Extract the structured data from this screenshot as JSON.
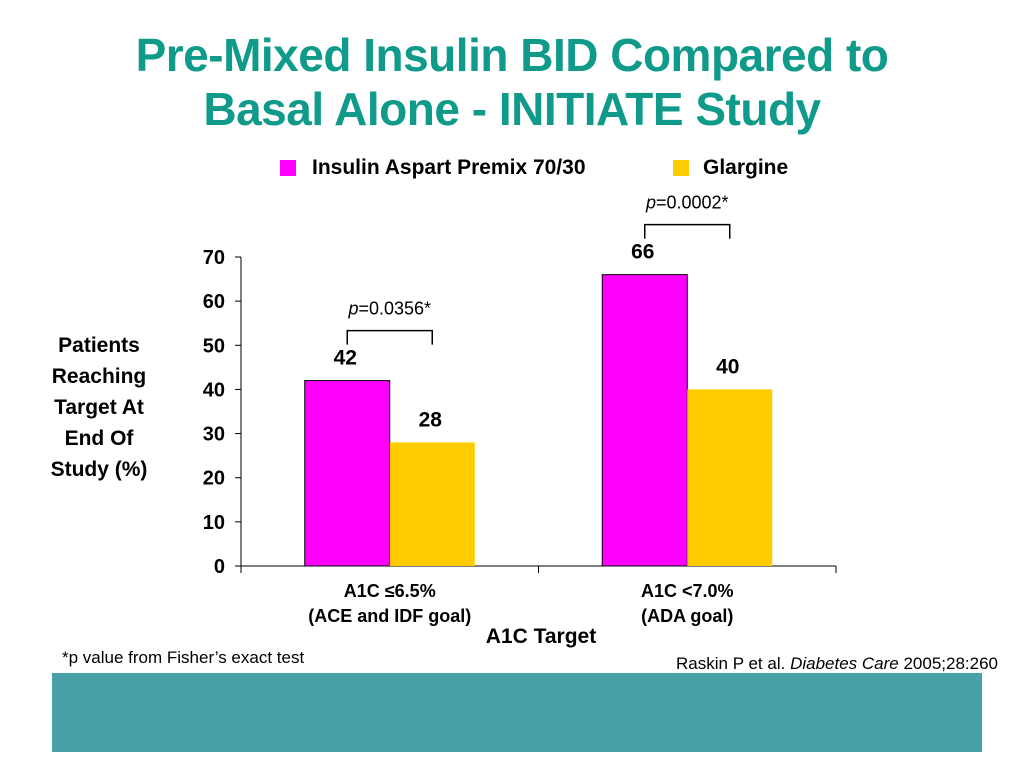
{
  "title": {
    "line1": "Pre-Mixed Insulin BID Compared to",
    "line2": "Basal Alone - INITIATE Study",
    "color": "#0f9a8a"
  },
  "legend": {
    "items": [
      {
        "label": "Insulin Aspart Premix 70/30",
        "color": "#ff00ff"
      },
      {
        "label": "Glargine",
        "color": "#ffcc00"
      }
    ]
  },
  "y_axis_label": {
    "lines": [
      "Patients",
      "Reaching",
      "Target At",
      "End Of",
      "Study (%)"
    ]
  },
  "chart_data": {
    "type": "bar",
    "categories": [
      [
        "A1C ≤6.5%",
        "(ACE and IDF goal)"
      ],
      [
        "A1C <7.0%",
        "(ADA goal)"
      ]
    ],
    "series": [
      {
        "name": "Insulin Aspart Premix 70/30",
        "values": [
          42,
          66
        ],
        "color": "#ff00ff"
      },
      {
        "name": "Glargine",
        "values": [
          28,
          40
        ],
        "color": "#ffcc00"
      }
    ],
    "xlabel": "A1C Target",
    "ylim": [
      0,
      70
    ],
    "yticks": [
      0,
      10,
      20,
      30,
      40,
      50,
      60,
      70
    ],
    "data_labels": true,
    "grid": false,
    "annotations": [
      {
        "category_index": 0,
        "italic_prefix": "p",
        "text": "=0.0356*"
      },
      {
        "category_index": 1,
        "italic_prefix": "p",
        "text": "=0.0002*"
      }
    ]
  },
  "footnote": "*p value from Fisher’s exact test",
  "citation": {
    "authors": "Raskin P et al. ",
    "journal": "Diabetes Care",
    "details": " 2005;28:260"
  },
  "footer_bar": {
    "color": "#48a0a8"
  }
}
